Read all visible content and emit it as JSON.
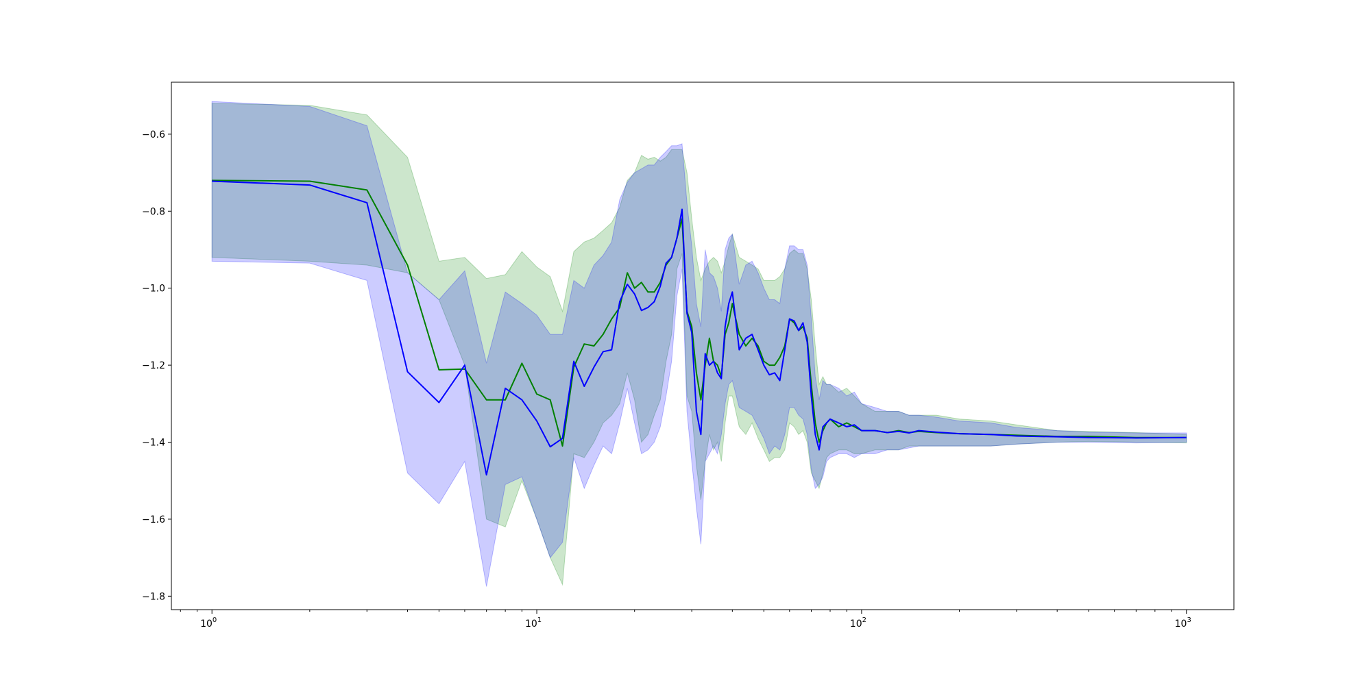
{
  "chart_data": {
    "type": "line",
    "title": "",
    "xlabel": "",
    "ylabel": "",
    "xscale": "log",
    "xlim": [
      0.75,
      1400
    ],
    "ylim": [
      -1.835,
      -0.465
    ],
    "grid": false,
    "legend": "none",
    "x_ticks": [
      {
        "value": 1,
        "base": "10",
        "exp": "0"
      },
      {
        "value": 10,
        "base": "10",
        "exp": "1"
      },
      {
        "value": 100,
        "base": "10",
        "exp": "2"
      },
      {
        "value": 1000,
        "base": "10",
        "exp": "3"
      }
    ],
    "y_ticks": [
      {
        "value": -0.6,
        "label": "−0.6"
      },
      {
        "value": -0.8,
        "label": "−0.8"
      },
      {
        "value": -1.0,
        "label": "−1.0"
      },
      {
        "value": -1.2,
        "label": "−1.2"
      },
      {
        "value": -1.4,
        "label": "−1.4"
      },
      {
        "value": -1.6,
        "label": "−1.6"
      },
      {
        "value": -1.8,
        "label": "−1.8"
      }
    ],
    "series": [
      {
        "color": "#008000",
        "band_color": "#008000",
        "band_opacity": 0.2,
        "x": [
          1,
          2,
          3,
          4,
          5,
          6,
          7,
          8,
          9,
          10,
          11,
          12,
          13,
          14,
          15,
          16,
          17,
          18,
          19,
          20,
          21,
          22,
          23,
          24,
          25,
          26,
          27,
          28,
          29,
          30,
          31,
          32,
          33,
          34,
          35,
          36,
          37,
          38,
          39,
          40,
          42,
          44,
          46,
          48,
          50,
          52,
          54,
          56,
          58,
          60,
          62,
          64,
          66,
          68,
          70,
          72,
          74,
          76,
          78,
          80,
          85,
          90,
          95,
          100,
          110,
          120,
          130,
          140,
          150,
          170,
          200,
          250,
          300,
          400,
          500,
          700,
          1000
        ],
        "values": [
          -0.72,
          -0.722,
          -0.745,
          -0.94,
          -1.212,
          -1.21,
          -1.29,
          -1.29,
          -1.195,
          -1.275,
          -1.29,
          -1.41,
          -1.205,
          -1.145,
          -1.15,
          -1.12,
          -1.08,
          -1.05,
          -0.96,
          -1.0,
          -0.985,
          -1.01,
          -1.01,
          -0.985,
          -0.94,
          -0.92,
          -0.87,
          -0.82,
          -1.06,
          -1.1,
          -1.22,
          -1.29,
          -1.2,
          -1.13,
          -1.19,
          -1.2,
          -1.23,
          -1.12,
          -1.09,
          -1.04,
          -1.12,
          -1.15,
          -1.13,
          -1.15,
          -1.19,
          -1.2,
          -1.2,
          -1.18,
          -1.15,
          -1.08,
          -1.09,
          -1.11,
          -1.1,
          -1.13,
          -1.25,
          -1.35,
          -1.4,
          -1.37,
          -1.35,
          -1.34,
          -1.36,
          -1.35,
          -1.36,
          -1.37,
          -1.37,
          -1.375,
          -1.37,
          -1.375,
          -1.372,
          -1.375,
          -1.378,
          -1.38,
          -1.382,
          -1.385,
          -1.385,
          -1.388,
          -1.388
        ],
        "lower": [
          -0.92,
          -0.93,
          -0.94,
          -0.96,
          -1.03,
          -0.95,
          -1.2,
          -1.02,
          -1.04,
          -1.06,
          -1.09,
          -1.14,
          -1.1,
          -0.98,
          -0.94,
          -0.9,
          -0.86,
          -0.84,
          -0.78,
          -0.76,
          -0.72,
          -0.71,
          -0.71,
          -0.69,
          -0.68,
          -0.65,
          -0.65,
          -0.66,
          -0.72,
          -0.82,
          -0.96,
          -1.0,
          -0.98,
          -1.02,
          -0.98,
          -1.0,
          -1.04,
          -0.97,
          -0.92,
          -0.89,
          -0.95,
          -1.0,
          -1.0,
          -0.98,
          -1.0,
          -1.02,
          -1.03,
          -1.0,
          -0.97,
          -0.92,
          -0.92,
          -0.93,
          -0.95,
          -0.98,
          -1.05,
          -1.2,
          -1.28,
          -1.27,
          -1.28,
          -1.27,
          -1.29,
          -1.28,
          -1.3,
          -1.31,
          -1.33,
          -1.33,
          -1.33,
          -1.34,
          -1.34,
          -1.34,
          -1.345,
          -1.35,
          -1.36,
          -1.37,
          -1.375,
          -1.38,
          -1.385
        ],
        "upper": [
          -0.52,
          -0.525,
          -0.55,
          -0.66,
          -0.93,
          -0.92,
          -0.975,
          -0.965,
          -0.905,
          -0.945,
          -0.97,
          -1.06,
          -0.905,
          -0.88,
          -0.87,
          -0.85,
          -0.83,
          -0.79,
          -0.72,
          -0.7,
          -0.655,
          -0.665,
          -0.66,
          -0.67,
          -0.66,
          -0.64,
          -0.64,
          -0.64,
          -0.7,
          -0.82,
          -0.92,
          -0.98,
          -0.95,
          -0.93,
          -0.92,
          -0.93,
          -0.96,
          -0.93,
          -0.89,
          -0.86,
          -0.92,
          -0.93,
          -0.94,
          -0.95,
          -0.98,
          -0.98,
          -0.98,
          -0.97,
          -0.95,
          -0.91,
          -0.9,
          -0.91,
          -0.91,
          -0.95,
          -1.03,
          -1.15,
          -1.25,
          -1.23,
          -1.25,
          -1.25,
          -1.27,
          -1.26,
          -1.28,
          -1.3,
          -1.32,
          -1.32,
          -1.32,
          -1.33,
          -1.33,
          -1.33,
          -1.34,
          -1.345,
          -1.355,
          -1.37,
          -1.372,
          -1.375,
          -1.38
        ],
        "lower_band": [
          -0.92,
          -0.93,
          -0.94,
          -0.96,
          -1.03,
          -1.2,
          -1.6,
          -1.62,
          -1.5,
          -1.6,
          -1.7,
          -1.77,
          -1.43,
          -1.44,
          -1.4,
          -1.35,
          -1.33,
          -1.3,
          -1.22,
          -1.29,
          -1.4,
          -1.38,
          -1.33,
          -1.29,
          -1.19,
          -1.12,
          -0.95,
          -0.91,
          -1.28,
          -1.32,
          -1.46,
          -1.55,
          -1.45,
          -1.38,
          -1.42,
          -1.4,
          -1.45,
          -1.35,
          -1.28,
          -1.28,
          -1.36,
          -1.38,
          -1.35,
          -1.39,
          -1.42,
          -1.45,
          -1.44,
          -1.44,
          -1.42,
          -1.35,
          -1.36,
          -1.38,
          -1.37,
          -1.4,
          -1.48,
          -1.5,
          -1.52,
          -1.48,
          -1.44,
          -1.43,
          -1.42,
          -1.42,
          -1.43,
          -1.43,
          -1.42,
          -1.42,
          -1.42,
          -1.41,
          -1.41,
          -1.41,
          -1.41,
          -1.41,
          -1.405,
          -1.4,
          -1.398,
          -1.4,
          -1.402
        ]
      },
      {
        "color": "#0000ff",
        "band_color": "#0000ff",
        "band_opacity": 0.2,
        "x": [
          1,
          2,
          3,
          4,
          5,
          6,
          7,
          8,
          9,
          10,
          11,
          12,
          13,
          14,
          15,
          16,
          17,
          18,
          19,
          20,
          21,
          22,
          23,
          24,
          25,
          26,
          27,
          28,
          29,
          30,
          31,
          32,
          33,
          34,
          35,
          36,
          37,
          38,
          39,
          40,
          42,
          44,
          46,
          48,
          50,
          52,
          54,
          56,
          58,
          60,
          62,
          64,
          66,
          68,
          70,
          72,
          74,
          76,
          78,
          80,
          85,
          90,
          95,
          100,
          110,
          120,
          130,
          140,
          150,
          170,
          200,
          250,
          300,
          400,
          500,
          700,
          1000
        ],
        "values": [
          -0.722,
          -0.732,
          -0.778,
          -1.217,
          -1.297,
          -1.2,
          -1.485,
          -1.26,
          -1.29,
          -1.345,
          -1.412,
          -1.39,
          -1.19,
          -1.255,
          -1.205,
          -1.165,
          -1.16,
          -1.035,
          -0.99,
          -1.015,
          -1.058,
          -1.05,
          -1.035,
          -0.995,
          -0.935,
          -0.92,
          -0.87,
          -0.795,
          -1.065,
          -1.115,
          -1.32,
          -1.38,
          -1.17,
          -1.2,
          -1.19,
          -1.22,
          -1.235,
          -1.1,
          -1.04,
          -1.01,
          -1.16,
          -1.13,
          -1.12,
          -1.16,
          -1.2,
          -1.225,
          -1.22,
          -1.24,
          -1.16,
          -1.08,
          -1.085,
          -1.11,
          -1.09,
          -1.14,
          -1.28,
          -1.38,
          -1.42,
          -1.36,
          -1.35,
          -1.34,
          -1.35,
          -1.36,
          -1.355,
          -1.37,
          -1.37,
          -1.375,
          -1.372,
          -1.376,
          -1.37,
          -1.374,
          -1.378,
          -1.38,
          -1.384,
          -1.386,
          -1.388,
          -1.389,
          -1.388
        ],
        "lower": [
          -0.93,
          -0.935,
          -0.98,
          -1.48,
          -1.56,
          -1.45,
          -1.775,
          -1.51,
          -1.49,
          -1.6,
          -1.7,
          -1.66,
          -1.44,
          -1.52,
          -1.46,
          -1.41,
          -1.43,
          -1.35,
          -1.26,
          -1.35,
          -1.43,
          -1.42,
          -1.4,
          -1.36,
          -1.28,
          -1.19,
          -1.02,
          -0.95,
          -1.32,
          -1.45,
          -1.57,
          -1.665,
          -1.45,
          -1.43,
          -1.41,
          -1.43,
          -1.38,
          -1.3,
          -1.25,
          -1.24,
          -1.31,
          -1.32,
          -1.33,
          -1.36,
          -1.39,
          -1.43,
          -1.41,
          -1.42,
          -1.38,
          -1.31,
          -1.31,
          -1.33,
          -1.34,
          -1.38,
          -1.47,
          -1.52,
          -1.51,
          -1.49,
          -1.45,
          -1.44,
          -1.43,
          -1.43,
          -1.44,
          -1.43,
          -1.43,
          -1.42,
          -1.42,
          -1.415,
          -1.41,
          -1.41,
          -1.41,
          -1.41,
          -1.405,
          -1.4,
          -1.4,
          -1.402,
          -1.4
        ],
        "upper": [
          -0.515,
          -0.528,
          -0.578,
          -0.96,
          -1.03,
          -0.955,
          -1.195,
          -1.01,
          -1.04,
          -1.07,
          -1.12,
          -1.12,
          -0.98,
          -1.0,
          -0.94,
          -0.915,
          -0.88,
          -0.77,
          -0.725,
          -0.7,
          -0.69,
          -0.68,
          -0.68,
          -0.66,
          -0.645,
          -0.63,
          -0.63,
          -0.625,
          -0.78,
          -0.89,
          -1.04,
          -1.1,
          -0.9,
          -0.96,
          -0.97,
          -1.0,
          -1.06,
          -0.9,
          -0.87,
          -0.86,
          -0.99,
          -0.94,
          -0.93,
          -0.96,
          -1.0,
          -1.03,
          -1.03,
          -1.04,
          -0.95,
          -0.89,
          -0.89,
          -0.9,
          -0.9,
          -0.94,
          -1.08,
          -1.23,
          -1.29,
          -1.24,
          -1.25,
          -1.25,
          -1.26,
          -1.28,
          -1.27,
          -1.3,
          -1.31,
          -1.32,
          -1.32,
          -1.33,
          -1.33,
          -1.335,
          -1.345,
          -1.35,
          -1.362,
          -1.37,
          -1.374,
          -1.376,
          -1.376
        ]
      }
    ]
  }
}
